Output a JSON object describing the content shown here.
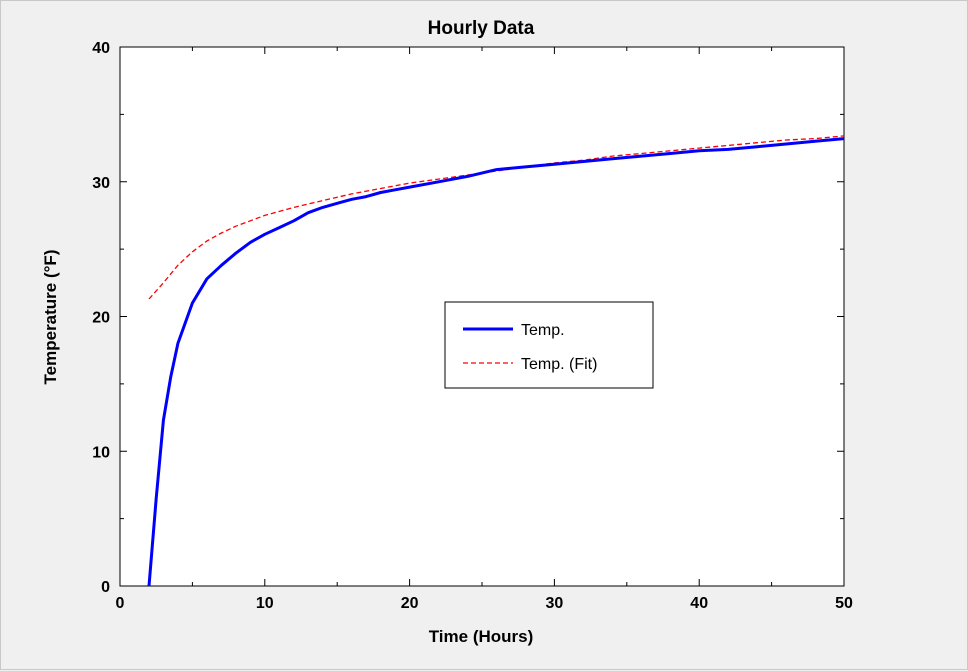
{
  "chart_data": {
    "type": "line",
    "title": "Hourly Data",
    "xlabel": "Time (Hours)",
    "ylabel": "Temperature (°F)",
    "xlim": [
      0,
      50
    ],
    "ylim": [
      0,
      40
    ],
    "xticks": [
      0,
      10,
      20,
      30,
      40,
      50
    ],
    "yticks": [
      0,
      10,
      20,
      30,
      40
    ],
    "grid": false,
    "legend_position": "center-right",
    "series": [
      {
        "name": "Temp.",
        "color": "#0000ff",
        "style": "solid",
        "x": [
          2,
          2.5,
          3,
          3.5,
          4,
          5,
          6,
          7,
          8,
          9,
          10,
          11,
          12,
          13,
          14,
          15,
          16,
          17,
          18,
          19,
          20,
          22,
          24,
          26,
          28,
          30,
          32,
          34,
          36,
          38,
          40,
          42,
          44,
          46,
          48,
          50
        ],
        "y": [
          0,
          6.5,
          12.3,
          15.5,
          18,
          21,
          22.8,
          23.8,
          24.7,
          25.5,
          26.1,
          26.6,
          27.1,
          27.7,
          28.1,
          28.4,
          28.7,
          28.9,
          29.2,
          29.4,
          29.6,
          30.0,
          30.4,
          30.9,
          31.1,
          31.3,
          31.5,
          31.7,
          31.9,
          32.1,
          32.3,
          32.4,
          32.6,
          32.8,
          33.0,
          33.2
        ]
      },
      {
        "name": "Temp. (Fit)",
        "color": "#ff0000",
        "style": "dashed",
        "x": [
          2,
          3,
          4,
          5,
          6,
          7,
          8,
          9,
          10,
          12,
          14,
          16,
          18,
          20,
          22,
          24,
          26,
          28,
          30,
          32,
          34,
          36,
          38,
          40,
          42,
          44,
          46,
          48,
          50
        ],
        "y": [
          21.3,
          22.5,
          23.8,
          24.8,
          25.6,
          26.2,
          26.7,
          27.1,
          27.5,
          28.1,
          28.6,
          29.1,
          29.5,
          29.9,
          30.2,
          30.5,
          30.8,
          31.1,
          31.4,
          31.6,
          31.9,
          32.1,
          32.3,
          32.5,
          32.7,
          32.9,
          33.1,
          33.2,
          33.4
        ]
      }
    ]
  }
}
